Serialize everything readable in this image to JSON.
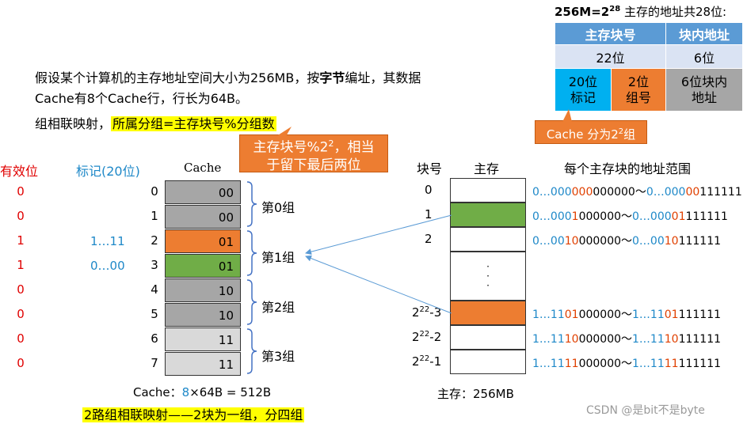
{
  "title_formula": "256M=2",
  "title_exp": "28",
  "title_rest": " 主存的地址共28位:",
  "addr_table": {
    "h1": "主存块号",
    "h2": "块内地址",
    "r1c1": "22位",
    "r1c2": "6位",
    "r2c1": "20位\n标记",
    "r2c2": "2位\n组号",
    "r2c3": "6位块内\n地址"
  },
  "cache_split_label": "Cache 分为2",
  "cache_split_exp": "2",
  "cache_split_tail": "组",
  "paragraph": {
    "part1": "假设某个计算机的主存地址空间大小为256MB，按",
    "bold": "字节",
    "part2": "编址，其数据Cache有8个Cache行，行长为64B。"
  },
  "mapping_line": {
    "prefix": "组相联映射，",
    "highlight": "所属分组=主存块号%分组数"
  },
  "callout_mod": {
    "line1_a": "主存块号%2",
    "line1_exp": "2",
    "line1_b": "，相当",
    "line2": "于留下最后两位"
  },
  "cache_headers": {
    "valid": "有效位",
    "tag": "标记(20位)",
    "cache": "Cache"
  },
  "cache_rows": [
    {
      "valid": "0",
      "tag": "",
      "index": "0",
      "bits": "00",
      "color": "#a6a6a6"
    },
    {
      "valid": "0",
      "tag": "",
      "index": "1",
      "bits": "00",
      "color": "#a6a6a6"
    },
    {
      "valid": "1",
      "tag": "1…11",
      "index": "2",
      "bits": "01",
      "color": "#ed7d31"
    },
    {
      "valid": "1",
      "tag": "0…00",
      "index": "3",
      "bits": "01",
      "color": "#70ad47"
    },
    {
      "valid": "0",
      "tag": "",
      "index": "4",
      "bits": "10",
      "color": "#a6a6a6"
    },
    {
      "valid": "0",
      "tag": "",
      "index": "5",
      "bits": "10",
      "color": "#a6a6a6"
    },
    {
      "valid": "0",
      "tag": "",
      "index": "6",
      "bits": "11",
      "color": "#d9d9d9"
    },
    {
      "valid": "0",
      "tag": "",
      "index": "7",
      "bits": "11",
      "color": "#d9d9d9"
    }
  ],
  "groups": [
    "第0组",
    "第1组",
    "第2组",
    "第3组"
  ],
  "cache_size": {
    "prefix": "Cache：",
    "eight": "8",
    "rest": "×64B = 512B"
  },
  "bottom_caption": "2路组相联映射——2块为一组，分四组",
  "mem_headers": {
    "block": "块号",
    "mem": "主存",
    "range": "每个主存块的地址范围"
  },
  "mem_rows": [
    {
      "label": "0",
      "sup": "",
      "tail": "",
      "color": "#ffffff",
      "a_pre": "0…000",
      "a_mid": "000",
      "a_post": "000000",
      "b_pre": "0…000",
      "b_mid": "00",
      "b_post": "111111"
    },
    {
      "label": "1",
      "sup": "",
      "tail": "",
      "color": "#70ad47",
      "a_pre": "0…000",
      "a_mid": "1",
      "a_post": "000000",
      "b_pre": "0…000",
      "b_mid": "01",
      "b_post": "111111"
    },
    {
      "label": "2",
      "sup": "",
      "tail": "",
      "color": "#ffffff",
      "a_pre": "0…00",
      "a_mid": "10",
      "a_post": "000000",
      "b_pre": "0…00",
      "b_mid": "10",
      "b_post": "111111"
    },
    {
      "label": "2",
      "sup": "22",
      "tail": "-3",
      "color": "#ed7d31",
      "a_pre": "1…11",
      "a_mid": "01",
      "a_post": "000000",
      "b_pre": "1…11",
      "b_mid": "01",
      "b_post": "111111"
    },
    {
      "label": "2",
      "sup": "22",
      "tail": "-2",
      "color": "#ffffff",
      "a_pre": "1…11",
      "a_mid": "10",
      "a_post": "000000",
      "b_pre": "1…11",
      "b_mid": "10",
      "b_post": "111111"
    },
    {
      "label": "2",
      "sup": "22",
      "tail": "-1",
      "color": "#ffffff",
      "a_pre": "1…11",
      "a_mid": "11",
      "a_post": "000000",
      "b_pre": "1…11",
      "b_mid": "11",
      "b_post": "111111"
    }
  ],
  "range_sep": "～",
  "dots": "·\n·\n·",
  "mem_size": "主存：256MB",
  "watermark": "CSDN @是bit不是byte"
}
